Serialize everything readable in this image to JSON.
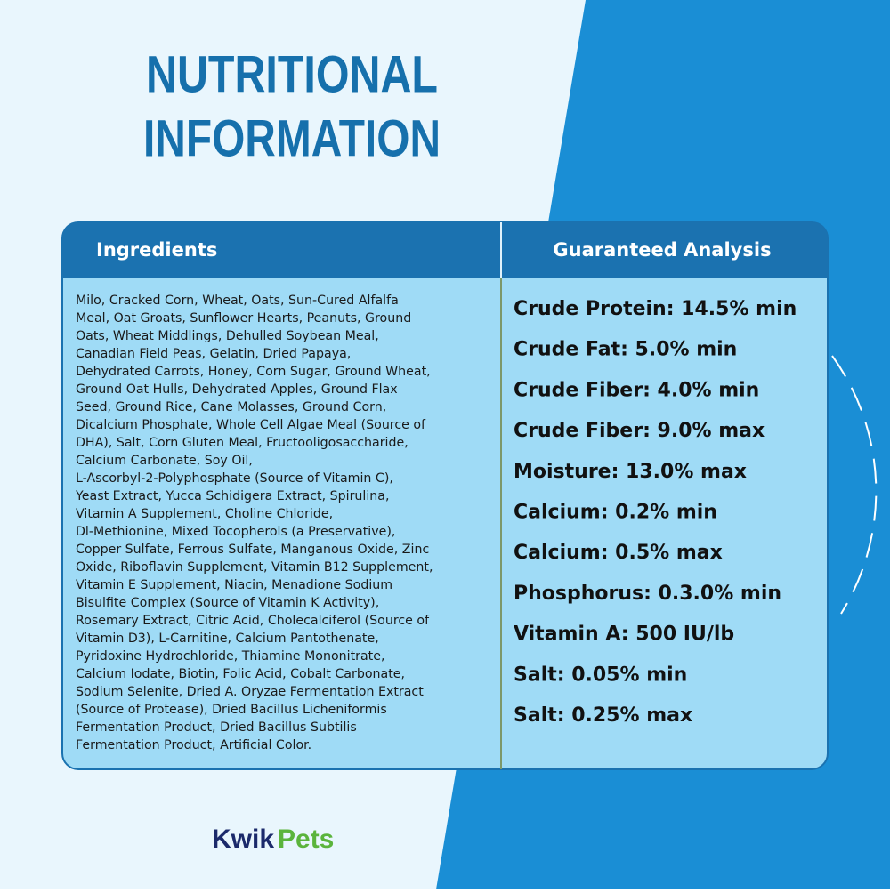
{
  "header": {
    "title_lines": [
      "NUTRITIONAL",
      "INFORMATION"
    ]
  },
  "table": {
    "headers": [
      "Ingredients",
      "Guaranteed Analysis"
    ],
    "ingredients_lines": [
      "Milo, Cracked Corn, Wheat, Oats, Sun-Cured Alfalfa",
      "Meal, Oat Groats, Sunflower Hearts, Peanuts, Ground",
      "Oats, Wheat Middlings, Dehulled Soybean Meal,",
      "Canadian Field Peas, Gelatin, Dried Papaya,",
      "Dehydrated Carrots, Honey, Corn Sugar, Ground Wheat,",
      "Ground Oat Hulls, Dehydrated Apples, Ground Flax",
      "Seed, Ground Rice, Cane Molasses, Ground Corn,",
      "Dicalcium Phosphate, Whole Cell Algae Meal (Source of",
      "DHA), Salt, Corn Gluten Meal, Fructooligosaccharide,",
      "Calcium Carbonate, Soy Oil,",
      "L-Ascorbyl-2-Polyphosphate (Source of Vitamin C),",
      "Yeast Extract, Yucca Schidigera Extract, Spirulina,",
      "Vitamin A Supplement, Choline Chloride,",
      "Dl-Methionine, Mixed Tocopherols (a Preservative),",
      "Copper Sulfate, Ferrous Sulfate, Manganous Oxide, Zinc",
      "Oxide, Riboflavin Supplement, Vitamin B12 Supplement,",
      "Vitamin E Supplement, Niacin, Menadione Sodium",
      "Bisulfite Complex (Source of Vitamin K Activity),",
      "Rosemary Extract, Citric Acid, Cholecalciferol (Source of",
      "Vitamin D3), L-Carnitine, Calcium Pantothenate,",
      "Pyridoxine Hydrochloride, Thiamine Mononitrate,",
      "Calcium Iodate, Biotin, Folic Acid, Cobalt Carbonate,",
      "Sodium Selenite, Dried A. Oryzae Fermentation Extract",
      "(Source of Protease), Dried Bacillus Licheniformis",
      "Fermentation Product, Dried Bacillus Subtilis",
      "Fermentation Product, Artificial Color."
    ],
    "analysis": [
      "Crude Protein: 14.5% min",
      "Crude Fat: 5.0% min",
      "Crude Fiber: 4.0% min",
      "Crude Fiber: 9.0% max",
      "Moisture: 13.0% max",
      "Calcium: 0.2% min",
      "Calcium: 0.5% max",
      "Phosphorus: 0.3.0% min",
      "Vitamin A: 500 IU/lb",
      "Salt: 0.05% min",
      "Salt: 0.25% max"
    ]
  },
  "brand": {
    "first": "Kwik",
    "second": "Pets"
  }
}
